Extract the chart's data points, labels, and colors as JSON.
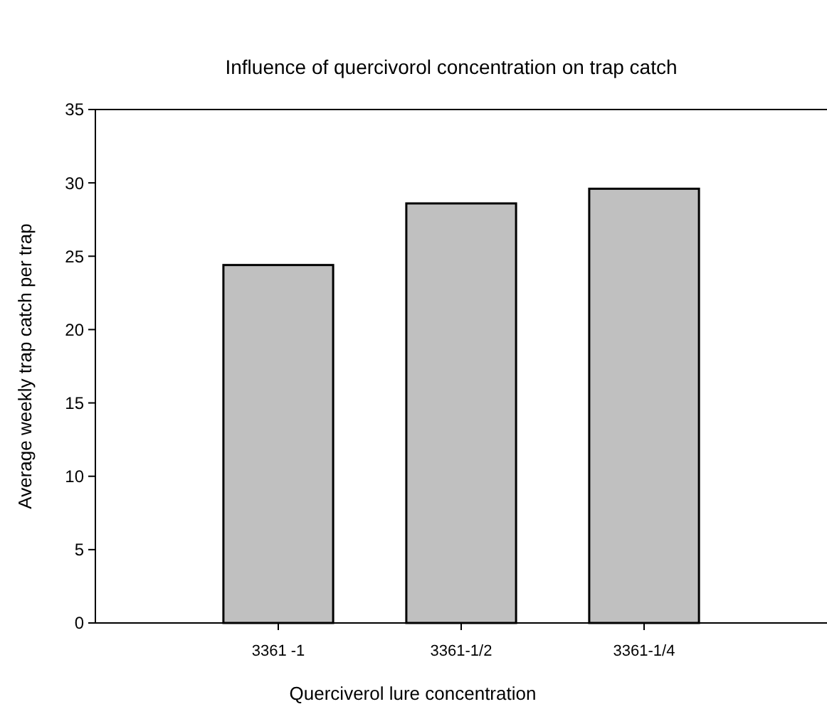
{
  "chart_data": {
    "type": "bar",
    "title": "Influence of quercivorol concentration on trap catch",
    "xlabel": "Querciverol lure concentration",
    "ylabel": "Average weekly trap catch per trap",
    "categories": [
      "3361 -1",
      "3361-1/2",
      "3361-1/4"
    ],
    "values": [
      24.4,
      28.6,
      29.6
    ],
    "color": "#c0c0c0",
    "ylim": [
      0,
      35
    ],
    "yticks": [
      0,
      5,
      10,
      15,
      20,
      25,
      30,
      35
    ],
    "grid": false
  }
}
